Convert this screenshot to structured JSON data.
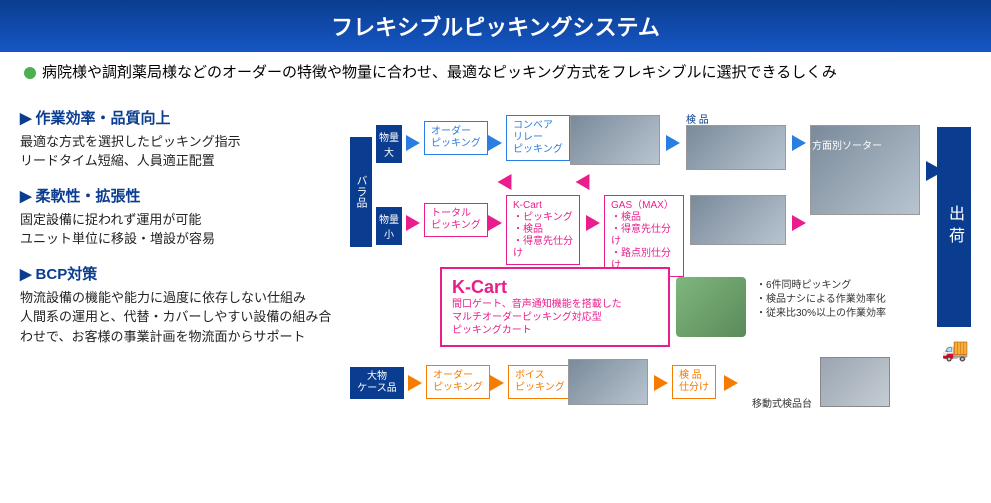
{
  "title": "フレキシブルピッキングシステム",
  "intro": "病院様や調剤薬局様などのオーダーの特徴や物量に合わせ、最適なピッキング方式をフレキシブルに選択できるしくみ",
  "features": [
    {
      "title": "作業効率・品質向上",
      "body": "最適な方式を選択したピッキング指示\nリードタイム短縮、人員適正配置"
    },
    {
      "title": "柔軟性・拡張性",
      "body": "固定設備に捉われず運用が可能\nユニット単位に移設・増設が容易"
    },
    {
      "title": "BCP対策",
      "body": "物流設備の機能や能力に過度に依存しない仕組み\n人間系の運用と、代替・カバーしやすい設備の組み合わせで、お客様の事業計画を物流面からサポート"
    }
  ],
  "diagram": {
    "side_labels": {
      "category1": "バラ品",
      "vol_large": "物量大",
      "vol_small": "物量小",
      "category2": "大物\nケース品"
    },
    "out_label": "出荷",
    "row1": {
      "node1": "オーダー\nピッキング",
      "node2": "コンベア\nリレー\nピッキング",
      "label_kenpin": "検 品",
      "label_sorter": "方面別ソーター"
    },
    "row2": {
      "node1": "トータル\nピッキング",
      "kcart": "K-Cart\n・ピッキング\n・検品\n・得意先仕分け",
      "gas": "GAS（MAX）\n・検品\n・得意先仕分け\n・路点別仕分け"
    },
    "kcart_callout": {
      "title": "K-Cart",
      "sub": "間口ゲート、音声通知機能を搭載した\nマルチオーダーピッキング対応型\nピッキングカート",
      "feat": "・6件同時ピッキング\n・検品ナシによる作業効率化\n・従来比30%以上の作業効率"
    },
    "row3": {
      "node1": "オーダー\nピッキング",
      "node2": "ボイス\nピッキング",
      "node3": "検 品\n仕分け",
      "exam_label": "移動式検品台"
    },
    "colors": {
      "navy": "#0a3d8f",
      "blue": "#2a7de1",
      "pink": "#e91e8c",
      "orange": "#f57c00",
      "green": "#4caf50"
    }
  }
}
